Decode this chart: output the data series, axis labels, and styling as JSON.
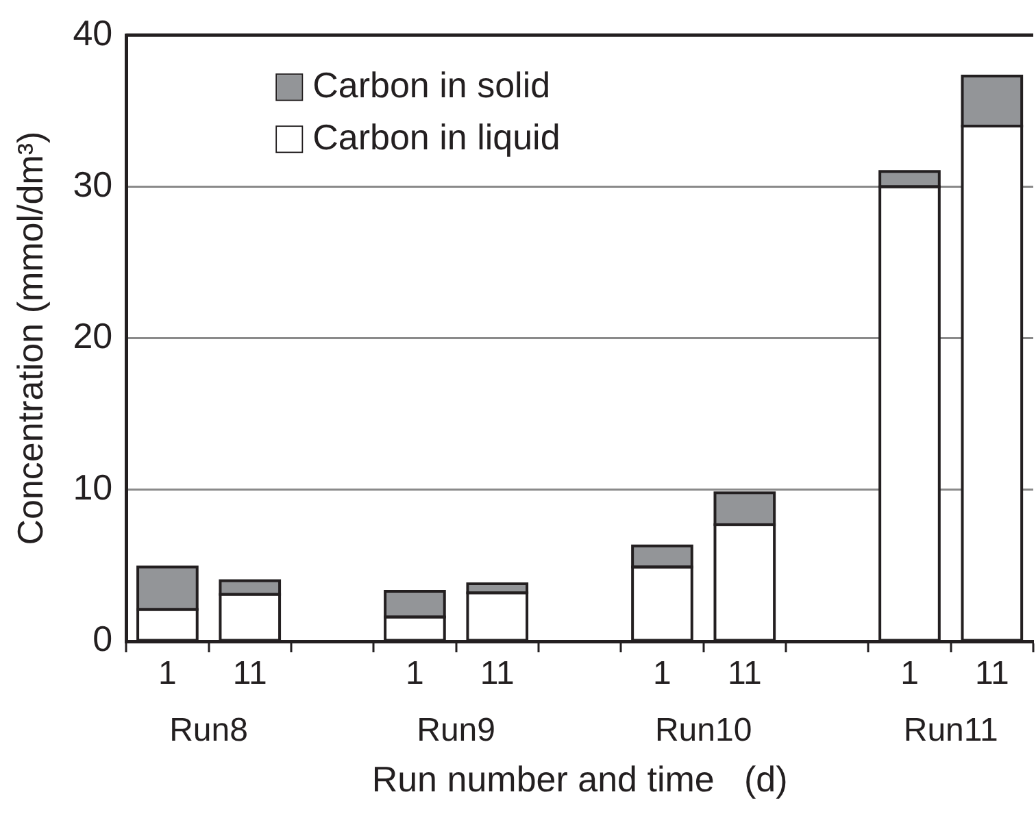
{
  "chart_data": {
    "type": "bar",
    "stacked": true,
    "xlabel": "Run number and time   (d)",
    "ylabel": "Concentration (mmol/dm³)",
    "categories": [
      "1",
      "11",
      null,
      "1",
      "11",
      null,
      "1",
      "11",
      null,
      "1",
      "11"
    ],
    "series": [
      {
        "name": "Carbon in liquid",
        "color": "#ffffff",
        "values": [
          2.1,
          3.1,
          null,
          1.6,
          3.2,
          null,
          4.9,
          7.7,
          null,
          30.0,
          34.0
        ]
      },
      {
        "name": "Carbon in solid",
        "color": "#939598",
        "values": [
          2.8,
          0.9,
          null,
          1.7,
          0.6,
          null,
          1.4,
          2.1,
          null,
          1.0,
          3.3
        ]
      }
    ],
    "ylim": [
      0,
      40
    ],
    "yticks": [
      0,
      10,
      20,
      30,
      40
    ],
    "grid": "y",
    "legend": "top left",
    "annotations": [
      "Run8",
      "Run9",
      "Run10",
      "Run11"
    ]
  }
}
